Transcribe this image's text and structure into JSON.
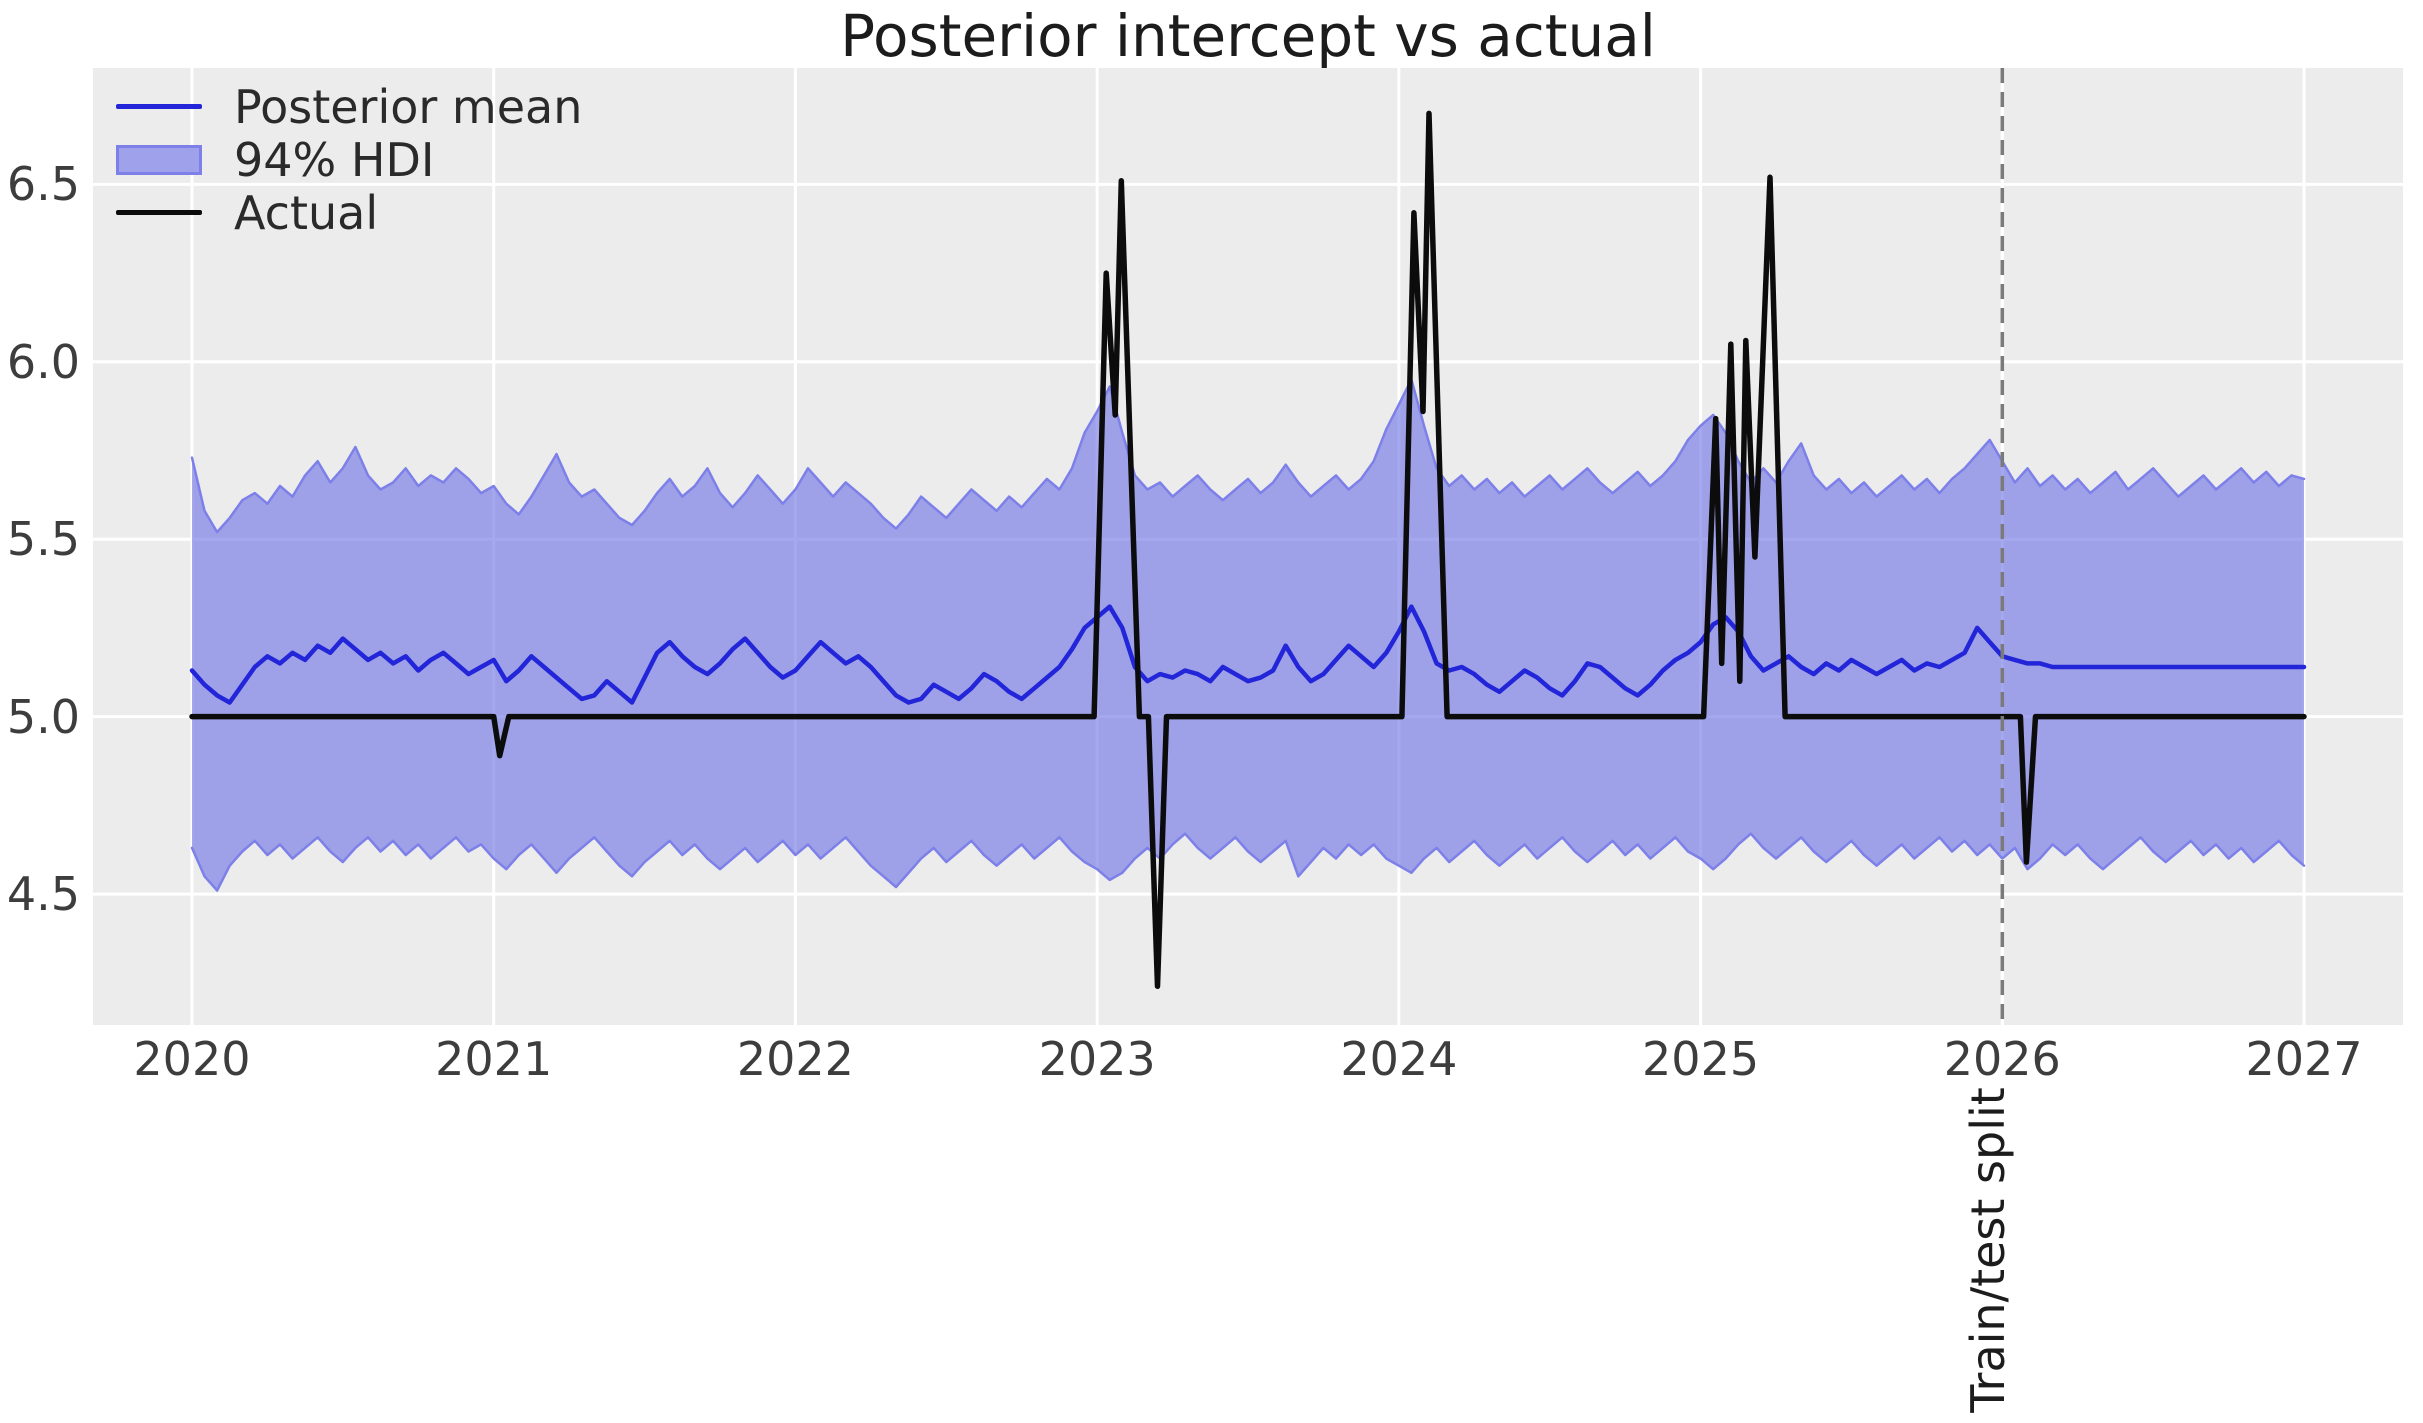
{
  "figure": {
    "title": "Posterior intercept vs actual"
  },
  "legend": {
    "items": [
      {
        "label": "Posterior mean",
        "type": "line",
        "color": "#2326d8"
      },
      {
        "label": "94% HDI",
        "type": "patch",
        "fill": "#9fa2ea",
        "edge": "#7c80e8"
      },
      {
        "label": "Actual",
        "type": "line",
        "color": "#0c0c0c"
      }
    ]
  },
  "annotation": {
    "label": "Train/test split",
    "x": 2026.0
  },
  "style": {
    "figure_bg": "#ffffff",
    "plot_bg": "#ececec",
    "grid_color": "#ffffff",
    "mean_line_color": "#2326d8",
    "actual_line_color": "#0c0c0c",
    "band_fill_rgba": "rgba(110,115,228,0.62)",
    "band_edge_color": "#7c80e8",
    "split_line_color": "#7a7a7a",
    "tick_label_color": "#3d3d3d",
    "title_color": "#1c1c1c"
  },
  "chart_data": {
    "type": "line",
    "title": "Posterior intercept vs actual",
    "xlabel": "",
    "ylabel": "",
    "xlim": [
      2019.672,
      2027.328
    ],
    "ylim": [
      4.131,
      6.828
    ],
    "xticks": [
      2020,
      2021,
      2022,
      2023,
      2024,
      2025,
      2026,
      2027
    ],
    "yticks": [
      4.5,
      5.0,
      5.5,
      6.0,
      6.5
    ],
    "grid": true,
    "legend_position": "upper left",
    "train_test_split_x": 2026.0,
    "x_start": 2020.0,
    "x_step_years": 0.0416667,
    "n_points": 169,
    "series": [
      {
        "name": "Posterior mean",
        "values": [
          5.13,
          5.09,
          5.06,
          5.04,
          5.09,
          5.14,
          5.17,
          5.15,
          5.18,
          5.16,
          5.2,
          5.18,
          5.22,
          5.19,
          5.16,
          5.18,
          5.15,
          5.17,
          5.13,
          5.16,
          5.18,
          5.15,
          5.12,
          5.14,
          5.16,
          5.1,
          5.13,
          5.17,
          5.14,
          5.11,
          5.08,
          5.05,
          5.06,
          5.1,
          5.07,
          5.04,
          5.11,
          5.18,
          5.21,
          5.17,
          5.14,
          5.12,
          5.15,
          5.19,
          5.22,
          5.18,
          5.14,
          5.11,
          5.13,
          5.17,
          5.21,
          5.18,
          5.15,
          5.17,
          5.14,
          5.1,
          5.06,
          5.04,
          5.05,
          5.09,
          5.07,
          5.05,
          5.08,
          5.12,
          5.1,
          5.07,
          5.05,
          5.08,
          5.11,
          5.14,
          5.19,
          5.25,
          5.28,
          5.31,
          5.25,
          5.14,
          5.1,
          5.12,
          5.11,
          5.13,
          5.12,
          5.1,
          5.14,
          5.12,
          5.1,
          5.11,
          5.13,
          5.2,
          5.14,
          5.1,
          5.12,
          5.16,
          5.2,
          5.17,
          5.14,
          5.18,
          5.24,
          5.31,
          5.24,
          5.15,
          5.13,
          5.14,
          5.12,
          5.09,
          5.07,
          5.1,
          5.13,
          5.11,
          5.08,
          5.06,
          5.1,
          5.15,
          5.14,
          5.11,
          5.08,
          5.06,
          5.09,
          5.13,
          5.16,
          5.18,
          5.21,
          5.26,
          5.28,
          5.24,
          5.17,
          5.13,
          5.15,
          5.17,
          5.14,
          5.12,
          5.15,
          5.13,
          5.16,
          5.14,
          5.12,
          5.14,
          5.16,
          5.13,
          5.15,
          5.14,
          5.16,
          5.18,
          5.25,
          5.21,
          5.17,
          5.16,
          5.15,
          5.15,
          5.14,
          5.14,
          5.14,
          5.14,
          5.14,
          5.14,
          5.14,
          5.14,
          5.14,
          5.14,
          5.14,
          5.14,
          5.14,
          5.14,
          5.14,
          5.14,
          5.14,
          5.14,
          5.14,
          5.14,
          5.14
        ]
      },
      {
        "name": "94% HDI upper",
        "values": [
          5.73,
          5.58,
          5.52,
          5.56,
          5.61,
          5.63,
          5.6,
          5.65,
          5.62,
          5.68,
          5.72,
          5.66,
          5.7,
          5.76,
          5.68,
          5.64,
          5.66,
          5.7,
          5.65,
          5.68,
          5.66,
          5.7,
          5.67,
          5.63,
          5.65,
          5.6,
          5.57,
          5.62,
          5.68,
          5.74,
          5.66,
          5.62,
          5.64,
          5.6,
          5.56,
          5.54,
          5.58,
          5.63,
          5.67,
          5.62,
          5.65,
          5.7,
          5.63,
          5.59,
          5.63,
          5.68,
          5.64,
          5.6,
          5.64,
          5.7,
          5.66,
          5.62,
          5.66,
          5.63,
          5.6,
          5.56,
          5.53,
          5.57,
          5.62,
          5.59,
          5.56,
          5.6,
          5.64,
          5.61,
          5.58,
          5.62,
          5.59,
          5.63,
          5.67,
          5.64,
          5.7,
          5.8,
          5.86,
          5.93,
          5.8,
          5.68,
          5.64,
          5.66,
          5.62,
          5.65,
          5.68,
          5.64,
          5.61,
          5.64,
          5.67,
          5.63,
          5.66,
          5.71,
          5.66,
          5.62,
          5.65,
          5.68,
          5.64,
          5.67,
          5.72,
          5.81,
          5.88,
          5.95,
          5.82,
          5.7,
          5.65,
          5.68,
          5.64,
          5.67,
          5.63,
          5.66,
          5.62,
          5.65,
          5.68,
          5.64,
          5.67,
          5.7,
          5.66,
          5.63,
          5.66,
          5.69,
          5.65,
          5.68,
          5.72,
          5.78,
          5.82,
          5.85,
          5.8,
          5.72,
          5.66,
          5.7,
          5.66,
          5.72,
          5.77,
          5.68,
          5.64,
          5.67,
          5.63,
          5.66,
          5.62,
          5.65,
          5.68,
          5.64,
          5.67,
          5.63,
          5.67,
          5.7,
          5.74,
          5.78,
          5.72,
          5.66,
          5.7,
          5.65,
          5.68,
          5.64,
          5.67,
          5.63,
          5.66,
          5.69,
          5.64,
          5.67,
          5.7,
          5.66,
          5.62,
          5.65,
          5.68,
          5.64,
          5.67,
          5.7,
          5.66,
          5.69,
          5.65,
          5.68,
          5.67
        ]
      },
      {
        "name": "94% HDI lower",
        "values": [
          4.63,
          4.55,
          4.51,
          4.58,
          4.62,
          4.65,
          4.61,
          4.64,
          4.6,
          4.63,
          4.66,
          4.62,
          4.59,
          4.63,
          4.66,
          4.62,
          4.65,
          4.61,
          4.64,
          4.6,
          4.63,
          4.66,
          4.62,
          4.64,
          4.6,
          4.57,
          4.61,
          4.64,
          4.6,
          4.56,
          4.6,
          4.63,
          4.66,
          4.62,
          4.58,
          4.55,
          4.59,
          4.62,
          4.65,
          4.61,
          4.64,
          4.6,
          4.57,
          4.6,
          4.63,
          4.59,
          4.62,
          4.65,
          4.61,
          4.64,
          4.6,
          4.63,
          4.66,
          4.62,
          4.58,
          4.55,
          4.52,
          4.56,
          4.6,
          4.63,
          4.59,
          4.62,
          4.65,
          4.61,
          4.58,
          4.61,
          4.64,
          4.6,
          4.63,
          4.66,
          4.62,
          4.59,
          4.57,
          4.54,
          4.56,
          4.6,
          4.63,
          4.6,
          4.64,
          4.67,
          4.63,
          4.6,
          4.63,
          4.66,
          4.62,
          4.59,
          4.62,
          4.65,
          4.55,
          4.59,
          4.63,
          4.6,
          4.64,
          4.61,
          4.64,
          4.6,
          4.58,
          4.56,
          4.6,
          4.63,
          4.59,
          4.62,
          4.65,
          4.61,
          4.58,
          4.61,
          4.64,
          4.6,
          4.63,
          4.66,
          4.62,
          4.59,
          4.62,
          4.65,
          4.61,
          4.64,
          4.6,
          4.63,
          4.66,
          4.62,
          4.6,
          4.57,
          4.6,
          4.64,
          4.67,
          4.63,
          4.6,
          4.63,
          4.66,
          4.62,
          4.59,
          4.62,
          4.65,
          4.61,
          4.58,
          4.61,
          4.64,
          4.6,
          4.63,
          4.66,
          4.62,
          4.65,
          4.61,
          4.64,
          4.6,
          4.63,
          4.57,
          4.6,
          4.64,
          4.61,
          4.64,
          4.6,
          4.57,
          4.6,
          4.63,
          4.66,
          4.62,
          4.59,
          4.62,
          4.65,
          4.61,
          4.64,
          4.6,
          4.63,
          4.59,
          4.62,
          4.65,
          4.61,
          4.58
        ]
      }
    ],
    "actual_points": [
      [
        2020.0,
        5.0
      ],
      [
        2021.0,
        5.0
      ],
      [
        2021.02,
        4.89
      ],
      [
        2021.05,
        5.0
      ],
      [
        2022.99,
        5.0
      ],
      [
        2023.03,
        6.25
      ],
      [
        2023.06,
        5.85
      ],
      [
        2023.08,
        6.51
      ],
      [
        2023.14,
        5.0
      ],
      [
        2023.17,
        5.0
      ],
      [
        2023.2,
        4.24
      ],
      [
        2023.23,
        5.0
      ],
      [
        2024.01,
        5.0
      ],
      [
        2024.05,
        6.42
      ],
      [
        2024.08,
        5.86
      ],
      [
        2024.1,
        6.7
      ],
      [
        2024.16,
        5.0
      ],
      [
        2025.01,
        5.0
      ],
      [
        2025.05,
        5.84
      ],
      [
        2025.07,
        5.15
      ],
      [
        2025.1,
        6.05
      ],
      [
        2025.13,
        5.1
      ],
      [
        2025.15,
        6.06
      ],
      [
        2025.18,
        5.45
      ],
      [
        2025.23,
        6.52
      ],
      [
        2025.28,
        5.0
      ],
      [
        2026.06,
        5.0
      ],
      [
        2026.08,
        4.59
      ],
      [
        2026.11,
        5.0
      ],
      [
        2027.0,
        5.0
      ]
    ]
  }
}
